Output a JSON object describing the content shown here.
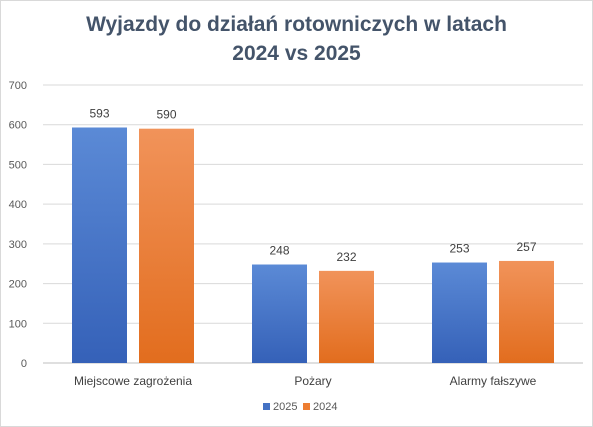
{
  "chart_data": {
    "type": "bar",
    "title_line1": "Wyjazdy do działań rotowniczych w latach",
    "title_line2": "2024 vs 2025",
    "categories": [
      "Miejscowe zagrożenia",
      "Pożary",
      "Alarmy fałszywe"
    ],
    "series": [
      {
        "name": "2025",
        "values": [
          593,
          248,
          253
        ],
        "color": "#4472c4"
      },
      {
        "name": "2024",
        "values": [
          590,
          232,
          257
        ],
        "color": "#ed7d31"
      }
    ],
    "ylim": [
      0,
      700
    ],
    "yticks": [
      0,
      100,
      200,
      300,
      400,
      500,
      600,
      700
    ],
    "grid": true,
    "legend_position": "bottom"
  }
}
